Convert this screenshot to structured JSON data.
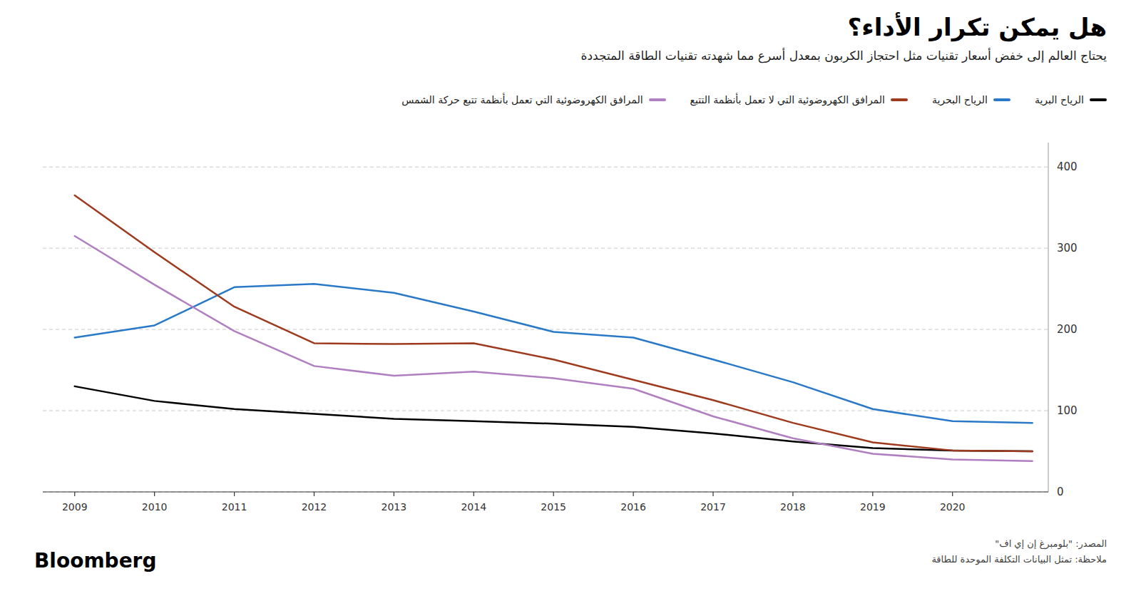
{
  "chart_data": {
    "type": "line",
    "title": "هل يمكن تكرار الأداء؟",
    "subtitle": "يحتاج العالم إلى خفض أسعار تقنيات مثل احتجاز الكربون بمعدل أسرع مما شهدته تقنيات الطاقة المتجددة",
    "annotations": [
      "المصدر: \"بلومبرغ إن إي اف\"",
      "ملاحظة: تمثل البيانات التكلفة الموحدة للطاقة",
      "Bloomberg"
    ],
    "x": [
      2009,
      2010,
      2011,
      2012,
      2013,
      2014,
      2015,
      2016,
      2017,
      2018,
      2019,
      2020,
      2021
    ],
    "series": [
      {
        "name": "الرياح البرية",
        "color": "#000000",
        "values": [
          130,
          112,
          102,
          96,
          90,
          87,
          84,
          80,
          72,
          62,
          54,
          51,
          50
        ]
      },
      {
        "name": "الرياح البحرية",
        "color": "#2979c8",
        "values": [
          190,
          205,
          252,
          256,
          245,
          222,
          197,
          190,
          163,
          135,
          102,
          87,
          85
        ]
      },
      {
        "name": "المرافق الكهروضوئية التي لا تعمل بأنظمة التتبع",
        "color": "#9e3a1e",
        "values": [
          365,
          295,
          228,
          183,
          182,
          183,
          163,
          138,
          113,
          85,
          61,
          51,
          50
        ]
      },
      {
        "name": "المرافق الكهروضوئية التي تعمل بأنظمة تتبع حركة الشمس",
        "color": "#b07fc0",
        "values": [
          315,
          255,
          198,
          155,
          143,
          148,
          140,
          127,
          93,
          66,
          47,
          40,
          38
        ]
      }
    ],
    "xlim": [
      2008.6,
      2021.2
    ],
    "xticks": [
      2009,
      2010,
      2011,
      2012,
      2013,
      2014,
      2015,
      2016,
      2017,
      2018,
      2019,
      2020
    ],
    "ylim": [
      0,
      430
    ],
    "yticks": [
      0,
      100,
      200,
      300,
      400
    ],
    "grid": true,
    "legend": "top"
  }
}
